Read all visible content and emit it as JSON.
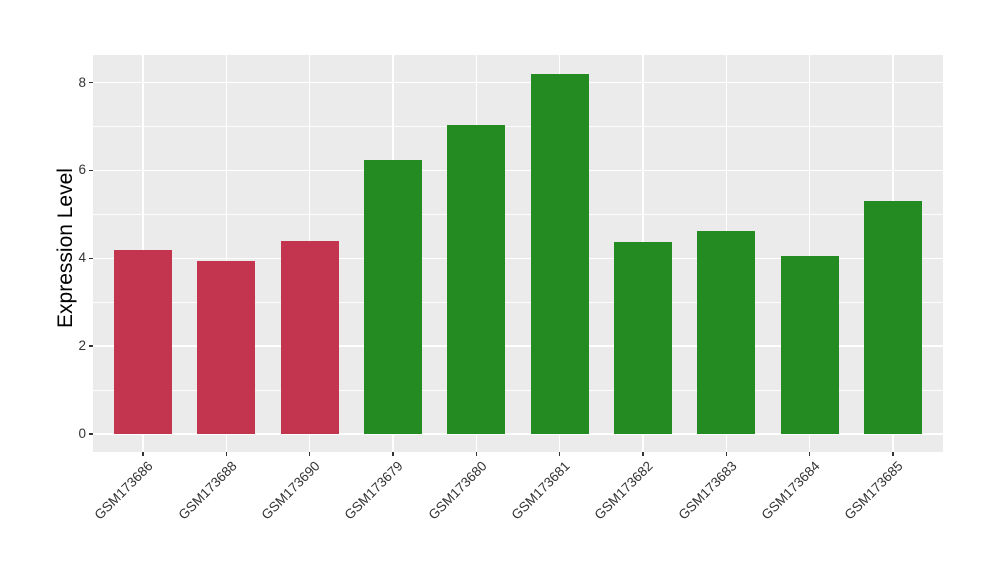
{
  "chart_data": {
    "type": "bar",
    "title": "",
    "xlabel": "",
    "ylabel": "Expression Level",
    "categories": [
      "GSM173686",
      "GSM173688",
      "GSM173690",
      "GSM173679",
      "GSM173680",
      "GSM173681",
      "GSM173682",
      "GSM173683",
      "GSM173684",
      "GSM173685"
    ],
    "values": [
      4.2,
      3.93,
      4.4,
      6.23,
      7.03,
      8.2,
      4.38,
      4.62,
      4.05,
      5.3
    ],
    "bar_colors": [
      "#C3344F",
      "#C3344F",
      "#C3344F",
      "#248B22",
      "#248B22",
      "#248B22",
      "#248B22",
      "#248B22",
      "#248B22",
      "#248B22"
    ],
    "groups": [
      {
        "name": "red-group",
        "color": "#C3344F",
        "samples": [
          "GSM173686",
          "GSM173688",
          "GSM173690"
        ]
      },
      {
        "name": "green-group",
        "color": "#248B22",
        "samples": [
          "GSM173679",
          "GSM173680",
          "GSM173681",
          "GSM173682",
          "GSM173683",
          "GSM173684",
          "GSM173685"
        ]
      }
    ],
    "yticks": [
      0,
      2,
      4,
      6,
      8
    ],
    "ytick_labels": [
      "0",
      "2",
      "4",
      "6",
      "8"
    ],
    "yticks_minor": [
      1,
      3,
      5,
      7
    ],
    "ylim": [
      -0.41,
      8.63
    ],
    "grid": true,
    "legend": false,
    "x_label_angle_deg": 45,
    "style": {
      "panel_bg": "#EBEBEB",
      "figure_bg": "#FFFFFF",
      "grid_major_color": "#FFFFFF",
      "grid_minor_color": "#FFFFFF",
      "tick_mark_color": "#333333",
      "axis_text_color": "#333333",
      "axis_title_color": "#000000"
    }
  }
}
